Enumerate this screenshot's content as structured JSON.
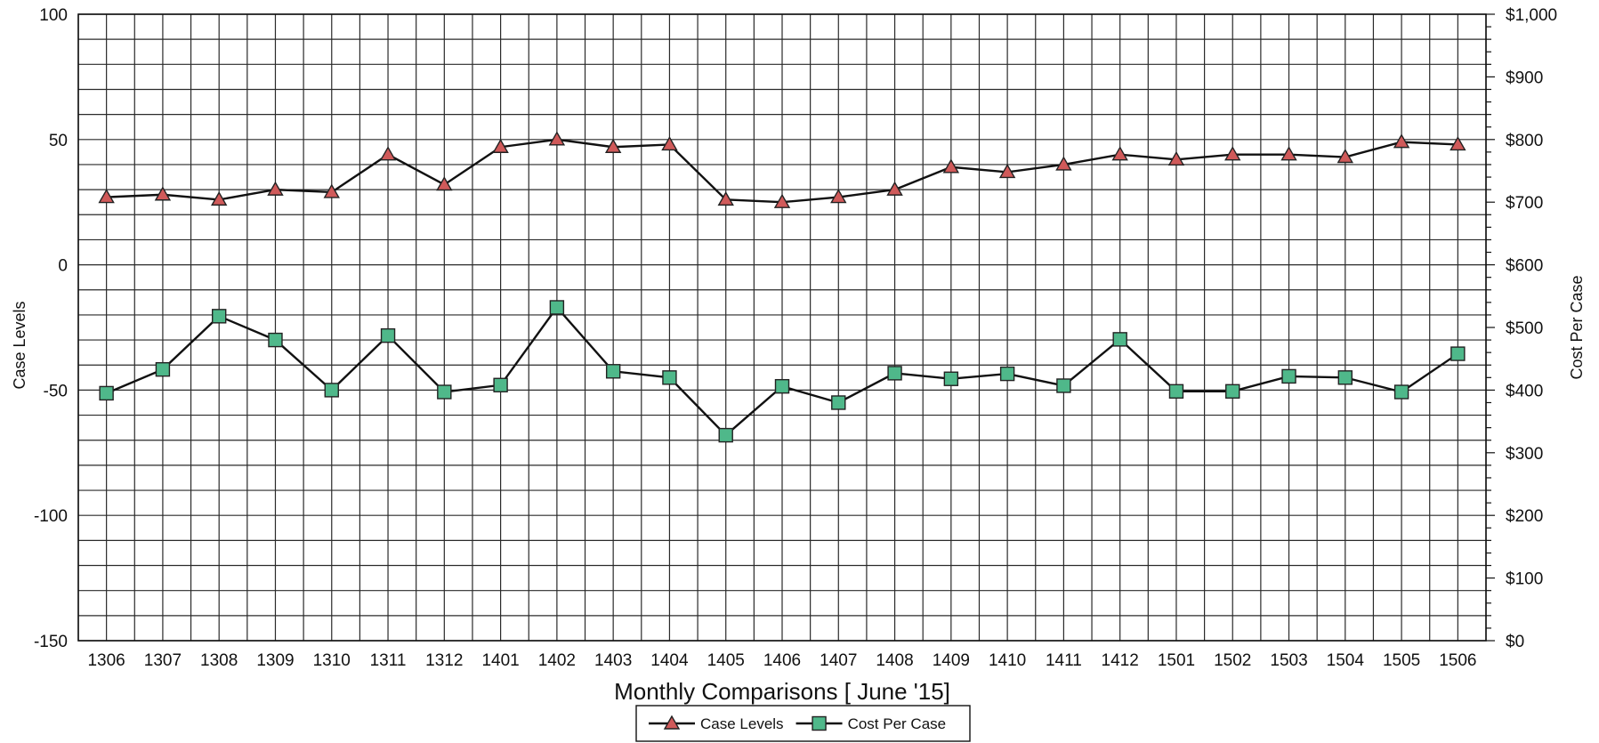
{
  "chart_data": {
    "type": "line",
    "title": "",
    "xlabel": "Monthly Comparisons [ June '15]",
    "ylabel": "Case Levels",
    "y2label": "Cost Per Case",
    "ylim": [
      -150,
      100
    ],
    "y2lim": [
      0,
      1000
    ],
    "y_ticks": [
      "100",
      "50",
      "0",
      "-50",
      "-100",
      "-150"
    ],
    "y2_ticks": [
      "$1,000",
      "$900",
      "$800",
      "$700",
      "$600",
      "$500",
      "$400",
      "$300",
      "$200",
      "$100",
      "$0"
    ],
    "grid": true,
    "legend_position": "bottom-center",
    "categories": [
      "1306",
      "1307",
      "1308",
      "1309",
      "1310",
      "1311",
      "1312",
      "1401",
      "1402",
      "1403",
      "1404",
      "1405",
      "1406",
      "1407",
      "1408",
      "1409",
      "1410",
      "1411",
      "1412",
      "1501",
      "1502",
      "1503",
      "1504",
      "1505",
      "1506"
    ],
    "series": [
      {
        "name": "Case Levels",
        "axis": "left",
        "marker": "triangle",
        "color": "#d05a5a",
        "values": [
          27,
          28,
          26,
          30,
          29,
          44,
          32,
          47,
          50,
          47,
          48,
          26,
          25,
          27,
          30,
          39,
          37,
          40,
          44,
          42,
          44,
          44,
          43,
          49,
          48
        ]
      },
      {
        "name": "Cost Per Case",
        "axis": "right",
        "marker": "square",
        "color": "#4fb88a",
        "values": [
          395,
          433,
          518,
          480,
          400,
          487,
          397,
          408,
          532,
          430,
          420,
          328,
          406,
          380,
          427,
          418,
          426,
          407,
          481,
          398,
          398,
          422,
          420,
          397,
          458
        ]
      }
    ]
  }
}
